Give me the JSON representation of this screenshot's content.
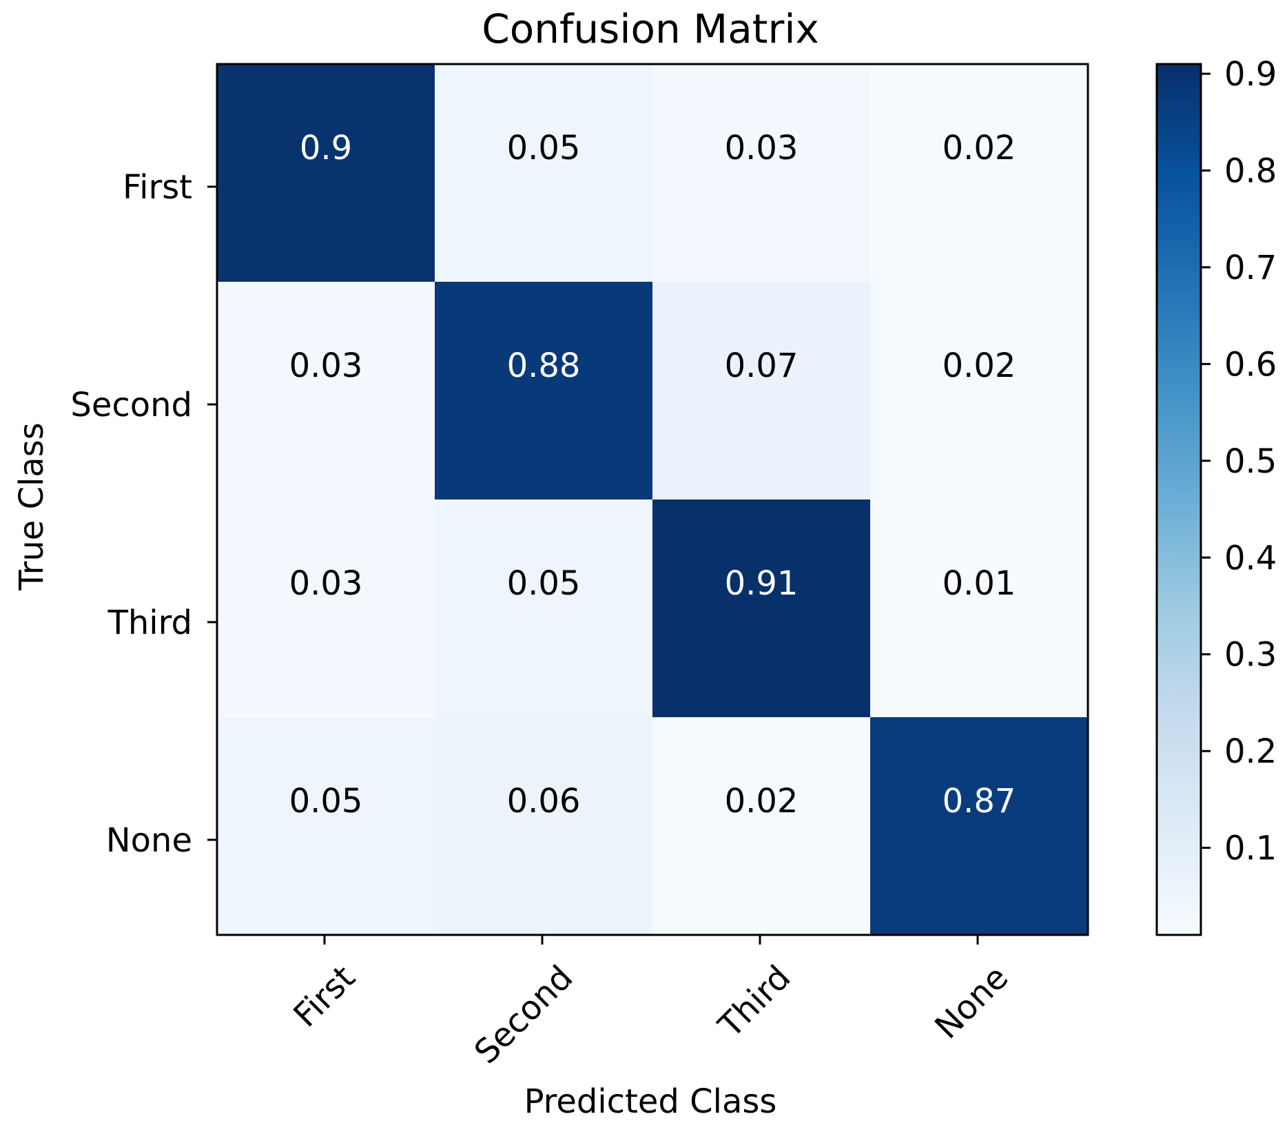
{
  "chart_data": {
    "type": "heatmap",
    "title": "Confusion Matrix",
    "xlabel": "Predicted Class",
    "ylabel": "True Class",
    "x_categories": [
      "First",
      "Second",
      "Third",
      "None"
    ],
    "y_categories": [
      "First",
      "Second",
      "Third",
      "None"
    ],
    "values": [
      [
        0.9,
        0.05,
        0.03,
        0.02
      ],
      [
        0.03,
        0.88,
        0.07,
        0.02
      ],
      [
        0.03,
        0.05,
        0.91,
        0.01
      ],
      [
        0.05,
        0.06,
        0.02,
        0.87
      ]
    ],
    "value_labels": [
      [
        "0.9",
        "0.05",
        "0.03",
        "0.02"
      ],
      [
        "0.03",
        "0.88",
        "0.07",
        "0.02"
      ],
      [
        "0.03",
        "0.05",
        "0.91",
        "0.01"
      ],
      [
        "0.05",
        "0.06",
        "0.02",
        "0.87"
      ]
    ],
    "colormap": "Blues",
    "colormap_stops": [
      "#f7fbff",
      "#deebf7",
      "#c6dbef",
      "#9ecae1",
      "#6baed6",
      "#4292c6",
      "#2171b5",
      "#08519c",
      "#08306b"
    ],
    "colorbar": {
      "range": [
        0.01,
        0.91
      ],
      "ticks": [
        0.1,
        0.2,
        0.3,
        0.4,
        0.5,
        0.6,
        0.7,
        0.8,
        0.9
      ],
      "tick_labels": [
        "0.1",
        "0.2",
        "0.3",
        "0.4",
        "0.5",
        "0.6",
        "0.7",
        "0.8",
        "0.9"
      ]
    },
    "text_color_light": "#ffffff",
    "text_color_dark": "#000000"
  }
}
